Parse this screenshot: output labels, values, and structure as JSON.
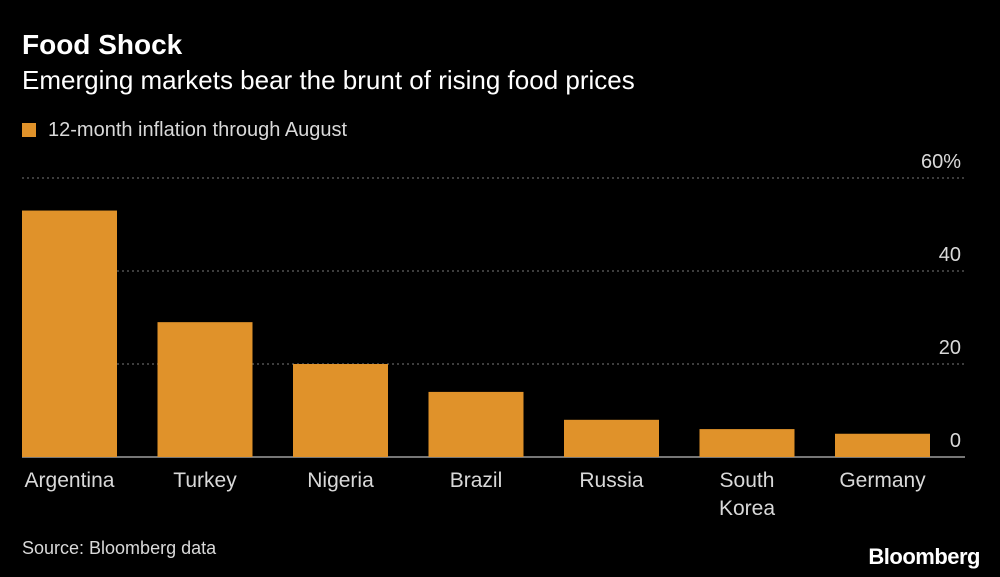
{
  "chart_data": {
    "type": "bar",
    "title": "Food Shock",
    "subtitle": "Emerging markets bear the brunt of rising food prices",
    "series": [
      {
        "name": "12-month inflation through August",
        "values": [
          53,
          29,
          20,
          14,
          8,
          6,
          5
        ]
      }
    ],
    "categories": [
      [
        "Argentina"
      ],
      [
        "Turkey"
      ],
      [
        "Nigeria"
      ],
      [
        "Brazil"
      ],
      [
        "Russia"
      ],
      [
        "South",
        "Korea"
      ],
      [
        "Germany"
      ]
    ],
    "ylim": [
      0,
      60
    ],
    "yticks": [
      0,
      20,
      40,
      60
    ],
    "ytick_labels": [
      "0",
      "20",
      "40",
      "60%"
    ],
    "xlabel": "",
    "ylabel": "",
    "grid": true,
    "axis_position": "right",
    "legend_position": "top-left",
    "colors": {
      "bar": "#e0922a",
      "background": "#000000",
      "grid": "#7a7a7a",
      "text": "#d9d9d9"
    }
  },
  "footer": {
    "source": "Source: Bloomberg data",
    "brand": "Bloomberg"
  }
}
